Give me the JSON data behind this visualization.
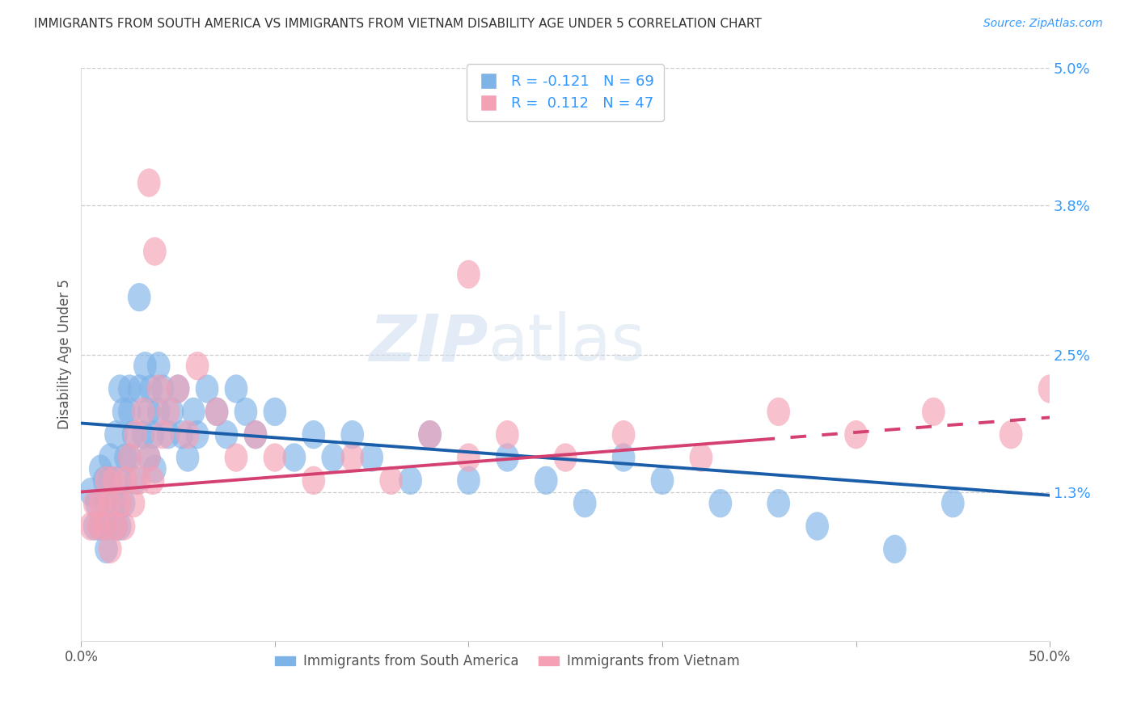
{
  "title": "IMMIGRANTS FROM SOUTH AMERICA VS IMMIGRANTS FROM VIETNAM DISABILITY AGE UNDER 5 CORRELATION CHART",
  "source": "Source: ZipAtlas.com",
  "ylabel": "Disability Age Under 5",
  "legend_label1": "Immigrants from South America",
  "legend_label2": "Immigrants from Vietnam",
  "r1": "-0.121",
  "n1": "69",
  "r2": "0.112",
  "n2": "47",
  "xmin": 0.0,
  "xmax": 0.5,
  "ymin": 0.0,
  "ymax": 0.05,
  "yticks": [
    0.013,
    0.025,
    0.038,
    0.05
  ],
  "ytick_labels": [
    "1.3%",
    "2.5%",
    "3.8%",
    "5.0%"
  ],
  "color_blue": "#7EB3E8",
  "color_pink": "#F4A0B5",
  "line_blue": "#1A5EAA",
  "line_pink": "#D44070",
  "background": "#ffffff",
  "grid_color": "#cccccc",
  "watermark_zip": "ZIP",
  "watermark_atlas": "atlas",
  "blue_scatter_x": [
    0.005,
    0.007,
    0.008,
    0.01,
    0.01,
    0.012,
    0.012,
    0.013,
    0.013,
    0.015,
    0.015,
    0.017,
    0.018,
    0.018,
    0.02,
    0.02,
    0.02,
    0.022,
    0.022,
    0.023,
    0.025,
    0.025,
    0.025,
    0.027,
    0.028,
    0.03,
    0.03,
    0.032,
    0.033,
    0.035,
    0.035,
    0.036,
    0.037,
    0.038,
    0.04,
    0.04,
    0.042,
    0.045,
    0.047,
    0.05,
    0.052,
    0.055,
    0.058,
    0.06,
    0.065,
    0.07,
    0.075,
    0.08,
    0.085,
    0.09,
    0.1,
    0.11,
    0.12,
    0.13,
    0.14,
    0.15,
    0.17,
    0.18,
    0.2,
    0.22,
    0.24,
    0.26,
    0.28,
    0.3,
    0.33,
    0.36,
    0.38,
    0.42,
    0.45
  ],
  "blue_scatter_y": [
    0.013,
    0.01,
    0.012,
    0.015,
    0.01,
    0.014,
    0.012,
    0.01,
    0.008,
    0.016,
    0.014,
    0.012,
    0.01,
    0.018,
    0.014,
    0.01,
    0.022,
    0.012,
    0.02,
    0.016,
    0.02,
    0.016,
    0.022,
    0.018,
    0.014,
    0.022,
    0.03,
    0.018,
    0.024,
    0.02,
    0.016,
    0.022,
    0.018,
    0.015,
    0.02,
    0.024,
    0.022,
    0.018,
    0.02,
    0.022,
    0.018,
    0.016,
    0.02,
    0.018,
    0.022,
    0.02,
    0.018,
    0.022,
    0.02,
    0.018,
    0.02,
    0.016,
    0.018,
    0.016,
    0.018,
    0.016,
    0.014,
    0.018,
    0.014,
    0.016,
    0.014,
    0.012,
    0.016,
    0.014,
    0.012,
    0.012,
    0.01,
    0.008,
    0.012
  ],
  "pink_scatter_x": [
    0.005,
    0.007,
    0.009,
    0.01,
    0.012,
    0.013,
    0.015,
    0.015,
    0.017,
    0.018,
    0.02,
    0.022,
    0.023,
    0.025,
    0.027,
    0.028,
    0.03,
    0.032,
    0.035,
    0.037,
    0.04,
    0.042,
    0.045,
    0.05,
    0.055,
    0.06,
    0.07,
    0.08,
    0.09,
    0.1,
    0.12,
    0.14,
    0.16,
    0.18,
    0.2,
    0.22,
    0.25,
    0.28,
    0.32,
    0.36,
    0.4,
    0.44,
    0.48,
    0.5,
    0.035,
    0.038,
    0.2
  ],
  "pink_scatter_y": [
    0.01,
    0.012,
    0.01,
    0.012,
    0.01,
    0.014,
    0.012,
    0.008,
    0.014,
    0.01,
    0.012,
    0.01,
    0.014,
    0.016,
    0.012,
    0.018,
    0.014,
    0.02,
    0.016,
    0.014,
    0.022,
    0.018,
    0.02,
    0.022,
    0.018,
    0.024,
    0.02,
    0.016,
    0.018,
    0.016,
    0.014,
    0.016,
    0.014,
    0.018,
    0.016,
    0.018,
    0.016,
    0.018,
    0.016,
    0.02,
    0.018,
    0.02,
    0.018,
    0.022,
    0.04,
    0.034,
    0.032
  ],
  "blue_line_x0": 0.0,
  "blue_line_x1": 0.5,
  "blue_line_y0": 0.019,
  "blue_line_y1": 0.0127,
  "pink_line_x0": 0.0,
  "pink_line_solid_x1": 0.35,
  "pink_line_x1": 0.5,
  "pink_line_y0": 0.013,
  "pink_line_y1": 0.0195
}
